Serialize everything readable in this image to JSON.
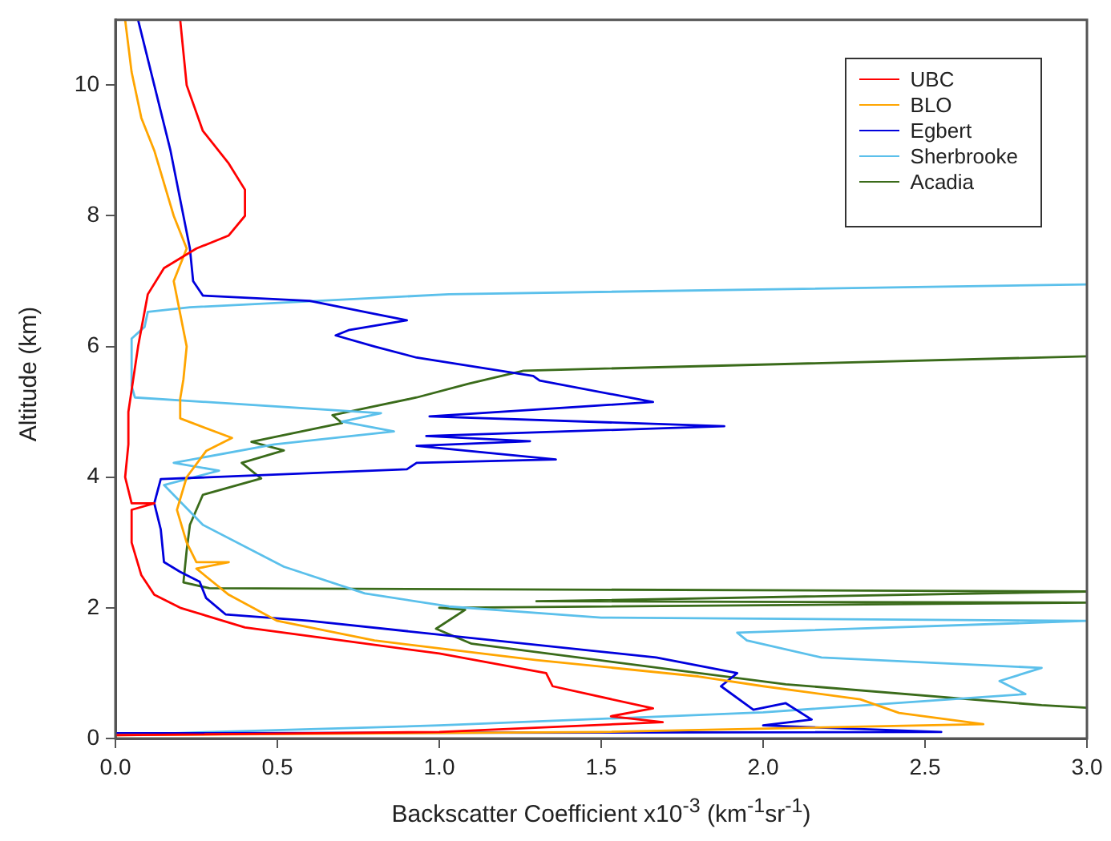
{
  "chart_data": {
    "type": "line",
    "xlabel": "Backscatter Coefficient x10$^{-3}$  (km$^{-1}$sr$^{-1}$)",
    "ylabel": "Altitude (km)",
    "xlim": [
      0,
      3
    ],
    "xticks": [
      {
        "value": 0,
        "label": "0.0"
      },
      {
        "value": 0.5,
        "label": "0.5"
      },
      {
        "value": 1,
        "label": "1.0"
      },
      {
        "value": 1.5,
        "label": "1.5"
      },
      {
        "value": 2,
        "label": "2.0"
      },
      {
        "value": 2.5,
        "label": "2.5"
      },
      {
        "value": 3,
        "label": "3.0"
      }
    ],
    "ylim": [
      0,
      11
    ],
    "yticks": [
      0,
      2,
      4,
      6,
      8,
      10
    ],
    "grid": false,
    "legend": "top right",
    "marker": "none",
    "line_style": "solid",
    "series": [
      {
        "name": "UBC",
        "color": "#ff0000",
        "x": [
          0.2,
          0.22,
          0.27,
          0.35,
          0.4,
          0.4,
          0.35,
          0.25,
          0.15,
          0.1,
          0.07,
          0.04,
          0.04,
          0.03,
          0.05,
          0.12,
          0.05,
          0.05,
          0.08,
          0.12,
          0.2,
          0.4,
          0.7,
          1.0,
          1.33,
          1.35,
          1.66,
          1.53,
          1.69,
          1.0,
          0.0
        ],
        "values": [
          11,
          10,
          9.3,
          8.8,
          8.4,
          8.0,
          7.7,
          7.5,
          7.2,
          6.8,
          6.0,
          5.0,
          4.5,
          4.0,
          3.6,
          3.6,
          3.5,
          3.0,
          2.5,
          2.2,
          2.0,
          1.7,
          1.5,
          1.3,
          1.0,
          0.8,
          0.46,
          0.34,
          0.25,
          0.1,
          0.05
        ]
      },
      {
        "name": "BLO",
        "color": "#ffa500",
        "x": [
          0.03,
          0.05,
          0.08,
          0.12,
          0.18,
          0.22,
          0.18,
          0.2,
          0.22,
          0.21,
          0.2,
          0.2,
          0.36,
          0.28,
          0.22,
          0.19,
          0.22,
          0.25,
          0.35,
          0.25,
          0.35,
          0.5,
          0.8,
          1.3,
          1.8,
          2.0,
          2.3,
          2.42,
          2.68,
          1.5,
          0.0
        ],
        "values": [
          11,
          10.2,
          9.5,
          9.0,
          8.0,
          7.5,
          7.0,
          6.5,
          6.0,
          5.5,
          5.2,
          4.9,
          4.6,
          4.4,
          4.0,
          3.5,
          3.0,
          2.7,
          2.7,
          2.6,
          2.2,
          1.8,
          1.5,
          1.2,
          0.95,
          0.8,
          0.6,
          0.39,
          0.22,
          0.1,
          0.05
        ]
      },
      {
        "name": "Egbert",
        "color": "#0000dd",
        "x": [
          0.07,
          0.12,
          0.17,
          0.21,
          0.23,
          0.24,
          0.27,
          0.6,
          0.8,
          0.9,
          0.72,
          0.68,
          0.8,
          0.93,
          1.29,
          1.31,
          1.66,
          0.97,
          1.88,
          0.96,
          1.28,
          0.93,
          1.36,
          0.93,
          0.9,
          0.14,
          0.12,
          0.14,
          0.15,
          0.2,
          0.26,
          0.28,
          0.34,
          0.6,
          1.67,
          1.92,
          1.87,
          1.97,
          2.07,
          2.15,
          2.0,
          2.55,
          0.0
        ],
        "values": [
          11,
          10,
          9,
          8,
          7.5,
          7.0,
          6.78,
          6.7,
          6.5,
          6.4,
          6.25,
          6.17,
          6.0,
          5.83,
          5.55,
          5.48,
          5.15,
          4.93,
          4.78,
          4.63,
          4.55,
          4.48,
          4.27,
          4.22,
          4.12,
          3.97,
          3.6,
          3.2,
          2.7,
          2.55,
          2.4,
          2.15,
          1.9,
          1.8,
          1.24,
          1.0,
          0.8,
          0.44,
          0.54,
          0.29,
          0.2,
          0.1,
          0.08
        ]
      },
      {
        "name": "Sherbrooke",
        "color": "#5bc0eb",
        "x": [
          3.0,
          1.03,
          0.23,
          0.1,
          0.09,
          0.05,
          0.05,
          0.06,
          0.82,
          0.7,
          0.86,
          0.49,
          0.18,
          0.32,
          0.15,
          0.27,
          0.52,
          0.77,
          1.03,
          1.5,
          3.0,
          1.92,
          1.95,
          2.18,
          2.86,
          2.73,
          2.81,
          2.0,
          1.0,
          0.3,
          0.0
        ],
        "values": [
          6.95,
          6.8,
          6.6,
          6.53,
          6.3,
          6.12,
          5.4,
          5.22,
          4.98,
          4.85,
          4.7,
          4.5,
          4.22,
          4.1,
          3.88,
          3.27,
          2.63,
          2.22,
          2.02,
          1.85,
          1.8,
          1.62,
          1.5,
          1.24,
          1.08,
          0.88,
          0.68,
          0.4,
          0.2,
          0.1,
          0.05
        ]
      },
      {
        "name": "Acadia",
        "color": "#3a6b1a",
        "x": [
          3.0,
          1.26,
          1.09,
          0.93,
          0.67,
          0.7,
          0.42,
          0.52,
          0.39,
          0.45,
          0.27,
          0.23,
          0.22,
          0.21,
          0.29,
          3.0,
          1.3,
          3.0,
          1.0,
          1.08,
          0.99,
          1.1,
          2.07,
          2.86,
          3.0
        ],
        "values": [
          5.85,
          5.63,
          5.43,
          5.22,
          4.95,
          4.83,
          4.54,
          4.41,
          4.22,
          3.98,
          3.73,
          3.27,
          2.88,
          2.39,
          2.3,
          2.25,
          2.1,
          2.08,
          2.0,
          1.97,
          1.68,
          1.45,
          0.83,
          0.51,
          0.47
        ]
      }
    ]
  }
}
